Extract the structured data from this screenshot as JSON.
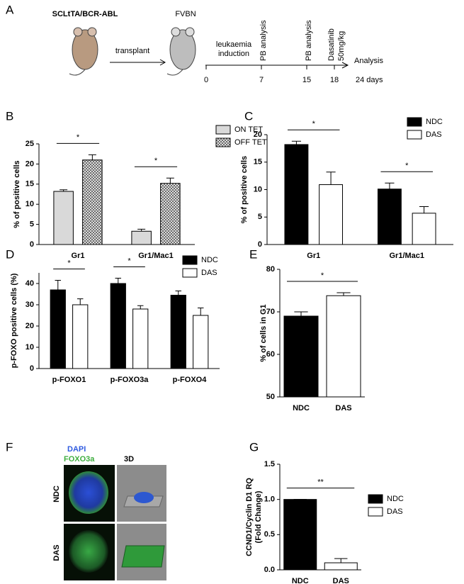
{
  "panel_a": {
    "label": "A",
    "donor": "SCLtTA/BCR-ABL",
    "recipient": "FVBN",
    "transplant": "transplant",
    "induction": [
      "leukaemia",
      "induction"
    ],
    "events": [
      "PB analysis",
      "PB analysis",
      "Dasatinib",
      "50mg/kg"
    ],
    "end": "Analysis",
    "timeline_ticks": [
      "0",
      "7",
      "15",
      "18",
      "24 days"
    ]
  },
  "panel_f": {
    "label": "F",
    "stains": [
      "DAPI",
      "FOXO3a"
    ],
    "view": "3D",
    "rows": [
      "NDC",
      "DAS"
    ]
  },
  "chart_data": [
    {
      "type": "bar",
      "label": "B",
      "ylabel": "% of positive cells",
      "categories": [
        "Gr1",
        "Gr1/Mac1"
      ],
      "series": [
        {
          "name": "ON TET",
          "color": "#d9d9d9",
          "values": [
            13.2,
            3.3
          ],
          "errors": [
            0.4,
            0.5
          ]
        },
        {
          "name": "OFF TET",
          "color": "#888888",
          "pattern": "crosshatch",
          "values": [
            21,
            15.2
          ],
          "errors": [
            1.3,
            1.3
          ]
        }
      ],
      "ylim": [
        0,
        25
      ],
      "yticks": [
        0,
        5,
        10,
        15,
        20,
        25
      ],
      "annotations": [
        "*",
        "*"
      ]
    },
    {
      "type": "bar",
      "label": "C",
      "ylabel": "% of positive cells",
      "categories": [
        "Gr1",
        "Gr1/Mac1"
      ],
      "series": [
        {
          "name": "NDC",
          "color": "#000000",
          "values": [
            18.2,
            10.1
          ],
          "errors": [
            0.6,
            1.1
          ]
        },
        {
          "name": "DAS",
          "color": "#ffffff",
          "values": [
            10.9,
            5.7
          ],
          "errors": [
            2.3,
            1.2
          ]
        }
      ],
      "ylim": [
        0,
        20
      ],
      "yticks": [
        0,
        5,
        10,
        15,
        20
      ],
      "annotations": [
        "*",
        "*"
      ]
    },
    {
      "type": "bar",
      "label": "D",
      "ylabel": "p-FOXO positive cells (%)",
      "categories": [
        "p-FOXO1",
        "p-FOXO3a",
        "p-FOXO4"
      ],
      "series": [
        {
          "name": "NDC",
          "color": "#000000",
          "values": [
            37,
            40,
            34.5
          ],
          "errors": [
            4.5,
            2.5,
            2
          ]
        },
        {
          "name": "DAS",
          "color": "#ffffff",
          "values": [
            30,
            28,
            25
          ],
          "errors": [
            2.8,
            1.6,
            3.5
          ]
        }
      ],
      "ylim": [
        0,
        45
      ],
      "yticks": [
        0,
        10,
        20,
        30,
        40
      ],
      "annotations": [
        "*",
        "*"
      ]
    },
    {
      "type": "bar",
      "label": "E",
      "ylabel": "% of cells in G1",
      "categories": [
        "NDC",
        "DAS"
      ],
      "values": [
        69,
        73.8
      ],
      "errors": [
        1,
        0.7
      ],
      "colors": [
        "#000000",
        "#ffffff"
      ],
      "ylim": [
        50,
        80
      ],
      "yticks": [
        50,
        60,
        70,
        80
      ],
      "annotations": [
        "*"
      ]
    },
    {
      "type": "bar",
      "label": "G",
      "ylabel": [
        "CCND1/Cyclin D1 RQ",
        "(Fold Change)"
      ],
      "categories": [
        "NDC",
        "DAS"
      ],
      "values": [
        1.0,
        0.1
      ],
      "errors": [
        0,
        0.06
      ],
      "colors": [
        "#000000",
        "#ffffff"
      ],
      "legend": [
        "NDC",
        "DAS"
      ],
      "ylim": [
        0,
        1.5
      ],
      "yticks": [
        {
          "value": 0,
          "label": "0.0"
        },
        0.5,
        {
          "value": 1,
          "label": "1.0"
        },
        1.5
      ],
      "annotations": [
        "**"
      ]
    }
  ]
}
